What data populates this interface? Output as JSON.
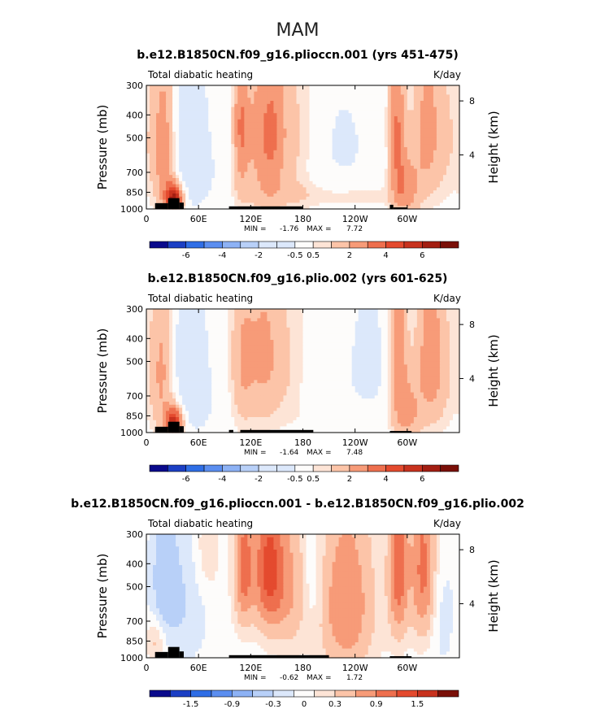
{
  "figure": {
    "season": "MAM"
  },
  "colors": {
    "blues": [
      "#0a0a8c",
      "#1b3fc4",
      "#2f6ee6",
      "#5b8ef0",
      "#8db2f5",
      "#b8d0f8",
      "#dce8fb"
    ],
    "neutral": "#fdfcfb",
    "reds": [
      "#fde4d6",
      "#fcc4a8",
      "#f79b78",
      "#ee6f4e",
      "#e44a2e",
      "#c8321e",
      "#a31e12",
      "#7a0f08"
    ],
    "topography": "#000000"
  },
  "chart_data": [
    {
      "type": "heatmap",
      "title": "b.e12.B1850CN.f09_g16.plioccn.001 (yrs 451-475)",
      "left_label": "Total diabatic heating",
      "units": "K/day",
      "ylabel": "Pressure (mb)",
      "ylabel_right": "Height (km)",
      "x_ticks": [
        "0",
        "60E",
        "120E",
        "180",
        "120W",
        "60W"
      ],
      "x_tick_lon": [
        0,
        60,
        120,
        180,
        240,
        300
      ],
      "xlim": [
        0,
        360
      ],
      "y_ticks": [
        "300",
        "400",
        "500",
        "700",
        "850",
        "1000"
      ],
      "y_tick_p": [
        300,
        400,
        500,
        700,
        850,
        1000
      ],
      "ylim": [
        300,
        1000
      ],
      "right_ticks": [
        "8",
        "4"
      ],
      "right_tick_km": [
        8,
        4
      ],
      "min_label": "MIN =",
      "min_value": "-1.76",
      "max_label": "MAX =",
      "max_value": "7.72",
      "colorbar_labels": [
        "-6",
        "-4",
        "-2",
        "-0.5",
        "0.5",
        "2",
        "4",
        "6"
      ],
      "colorbar_label_levels": [
        -6,
        -4,
        -2,
        -0.5,
        0.5,
        2,
        4,
        6
      ],
      "levels": [
        -7,
        -6,
        -5,
        -4,
        -3,
        -2,
        -1,
        -0.5,
        0.5,
        1,
        2,
        3,
        4,
        5,
        6,
        7
      ],
      "features": [
        {
          "lon": 20,
          "p": 550,
          "amp": 2.8,
          "sl": 10,
          "sp": 320
        },
        {
          "lon": 32,
          "p": 900,
          "amp": 6.0,
          "sl": 7,
          "sp": 90
        },
        {
          "lon": 48,
          "p": 450,
          "amp": -1.5,
          "sl": 14,
          "sp": 250
        },
        {
          "lon": 60,
          "p": 750,
          "amp": -0.7,
          "sl": 18,
          "sp": 200
        },
        {
          "lon": 108,
          "p": 450,
          "amp": 2.5,
          "sl": 6,
          "sp": 260
        },
        {
          "lon": 125,
          "p": 500,
          "amp": 1.8,
          "sl": 12,
          "sp": 300
        },
        {
          "lon": 145,
          "p": 480,
          "amp": 2.4,
          "sl": 11,
          "sp": 300
        },
        {
          "lon": 170,
          "p": 480,
          "amp": 1.2,
          "sl": 18,
          "sp": 280
        },
        {
          "lon": 175,
          "p": 880,
          "amp": 0.8,
          "sl": 50,
          "sp": 90
        },
        {
          "lon": 225,
          "p": 540,
          "amp": -0.6,
          "sl": 30,
          "sp": 280
        },
        {
          "lon": 255,
          "p": 880,
          "amp": 0.6,
          "sl": 30,
          "sp": 90
        },
        {
          "lon": 288,
          "p": 450,
          "amp": 3.0,
          "sl": 7,
          "sp": 320
        },
        {
          "lon": 300,
          "p": 820,
          "amp": 2.2,
          "sl": 10,
          "sp": 200
        },
        {
          "lon": 322,
          "p": 450,
          "amp": 2.2,
          "sl": 11,
          "sp": 300
        },
        {
          "lon": 345,
          "p": 500,
          "amp": 1.0,
          "sl": 14,
          "sp": 300
        }
      ],
      "topo": [
        [
          10,
          25,
          945
        ],
        [
          25,
          38,
          900
        ],
        [
          38,
          43,
          940
        ],
        [
          95,
          180,
          975
        ],
        [
          280,
          284,
          960
        ],
        [
          284,
          300,
          985
        ]
      ],
      "colorbar_ramp": "full"
    },
    {
      "type": "heatmap",
      "title": "b.e12.B1850CN.f09_g16.plio.002 (yrs 601-625)",
      "left_label": "Total diabatic heating",
      "units": "K/day",
      "ylabel": "Pressure (mb)",
      "ylabel_right": "Height (km)",
      "x_ticks": [
        "0",
        "60E",
        "120E",
        "180",
        "120W",
        "60W"
      ],
      "x_tick_lon": [
        0,
        60,
        120,
        180,
        240,
        300
      ],
      "xlim": [
        0,
        360
      ],
      "y_ticks": [
        "300",
        "400",
        "500",
        "700",
        "850",
        "1000"
      ],
      "y_tick_p": [
        300,
        400,
        500,
        700,
        850,
        1000
      ],
      "ylim": [
        300,
        1000
      ],
      "right_ticks": [
        "8",
        "4"
      ],
      "right_tick_km": [
        8,
        4
      ],
      "min_label": "MIN =",
      "min_value": "-1.64",
      "max_label": "MAX =",
      "max_value": "7.48",
      "colorbar_labels": [
        "-6",
        "-4",
        "-2",
        "-0.5",
        "0.5",
        "2",
        "4",
        "6"
      ],
      "colorbar_label_levels": [
        -6,
        -4,
        -2,
        -0.5,
        0.5,
        2,
        4,
        6
      ],
      "levels": [
        -7,
        -6,
        -5,
        -4,
        -3,
        -2,
        -1,
        -0.5,
        0.5,
        1,
        2,
        3,
        4,
        5,
        6,
        7
      ],
      "features": [
        {
          "lon": 18,
          "p": 550,
          "amp": 2.3,
          "sl": 10,
          "sp": 320
        },
        {
          "lon": 32,
          "p": 900,
          "amp": 5.5,
          "sl": 7,
          "sp": 90
        },
        {
          "lon": 48,
          "p": 450,
          "amp": -1.4,
          "sl": 14,
          "sp": 250
        },
        {
          "lon": 60,
          "p": 760,
          "amp": -0.6,
          "sl": 18,
          "sp": 200
        },
        {
          "lon": 110,
          "p": 500,
          "amp": 1.8,
          "sl": 10,
          "sp": 300
        },
        {
          "lon": 135,
          "p": 460,
          "amp": 2.0,
          "sl": 14,
          "sp": 300
        },
        {
          "lon": 165,
          "p": 520,
          "amp": 0.9,
          "sl": 18,
          "sp": 280
        },
        {
          "lon": 205,
          "p": 720,
          "amp": -0.5,
          "sl": 20,
          "sp": 200
        },
        {
          "lon": 255,
          "p": 500,
          "amp": -1.0,
          "sl": 14,
          "sp": 220
        },
        {
          "lon": 230,
          "p": 880,
          "amp": 0.6,
          "sl": 40,
          "sp": 90
        },
        {
          "lon": 290,
          "p": 450,
          "amp": 2.6,
          "sl": 7,
          "sp": 320
        },
        {
          "lon": 302,
          "p": 820,
          "amp": 2.0,
          "sl": 10,
          "sp": 200
        },
        {
          "lon": 325,
          "p": 450,
          "amp": 2.2,
          "sl": 11,
          "sp": 300
        },
        {
          "lon": 340,
          "p": 550,
          "amp": 1.0,
          "sl": 14,
          "sp": 300
        }
      ],
      "topo": [
        [
          10,
          25,
          945
        ],
        [
          25,
          38,
          900
        ],
        [
          38,
          43,
          940
        ],
        [
          95,
          100,
          975
        ],
        [
          108,
          192,
          975
        ],
        [
          280,
          305,
          985
        ]
      ],
      "colorbar_ramp": "full"
    },
    {
      "type": "heatmap",
      "title": "b.e12.B1850CN.f09_g16.plioccn.001 - b.e12.B1850CN.f09_g16.plio.002",
      "left_label": "Total diabatic heating",
      "units": "K/day",
      "ylabel": "Pressure (mb)",
      "ylabel_right": "Height (km)",
      "x_ticks": [
        "0",
        "60E",
        "120E",
        "180",
        "120W",
        "60W"
      ],
      "x_tick_lon": [
        0,
        60,
        120,
        180,
        240,
        300
      ],
      "xlim": [
        0,
        360
      ],
      "y_ticks": [
        "300",
        "400",
        "500",
        "700",
        "850",
        "1000"
      ],
      "y_tick_p": [
        300,
        400,
        500,
        700,
        850,
        1000
      ],
      "ylim": [
        300,
        1000
      ],
      "right_ticks": [
        "8",
        "4"
      ],
      "right_tick_km": [
        8,
        4
      ],
      "min_label": "MIN =",
      "min_value": "-0.62",
      "max_label": "MAX =",
      "max_value": "1.72",
      "colorbar_labels": [
        "-1.5",
        "-0.9",
        "-0.3",
        "0",
        "0.3",
        "0.9",
        "1.5"
      ],
      "colorbar_label_levels": [
        -1.5,
        -0.9,
        -0.3,
        0,
        0.3,
        0.9,
        1.5
      ],
      "levels": [
        -1.8,
        -1.5,
        -1.2,
        -0.9,
        -0.6,
        -0.3,
        -0.1,
        0.1,
        0.3,
        0.6,
        0.9,
        1.2,
        1.5,
        1.8
      ],
      "features": [
        {
          "lon": 10,
          "p": 850,
          "amp": 0.4,
          "sl": 8,
          "sp": 120
        },
        {
          "lon": 20,
          "p": 450,
          "amp": -0.4,
          "sl": 10,
          "sp": 200
        },
        {
          "lon": 40,
          "p": 600,
          "amp": -0.3,
          "sl": 20,
          "sp": 300
        },
        {
          "lon": 70,
          "p": 350,
          "amp": 0.3,
          "sl": 10,
          "sp": 120
        },
        {
          "lon": 112,
          "p": 420,
          "amp": 1.0,
          "sl": 8,
          "sp": 200
        },
        {
          "lon": 140,
          "p": 420,
          "amp": 1.2,
          "sl": 12,
          "sp": 220
        },
        {
          "lon": 165,
          "p": 500,
          "amp": 0.6,
          "sl": 16,
          "sp": 260
        },
        {
          "lon": 190,
          "p": 480,
          "amp": -0.3,
          "sl": 10,
          "sp": 200
        },
        {
          "lon": 230,
          "p": 600,
          "amp": 0.9,
          "sl": 22,
          "sp": 350
        },
        {
          "lon": 290,
          "p": 420,
          "amp": 1.1,
          "sl": 8,
          "sp": 260
        },
        {
          "lon": 318,
          "p": 420,
          "amp": 1.0,
          "sl": 10,
          "sp": 260
        },
        {
          "lon": 340,
          "p": 700,
          "amp": -0.2,
          "sl": 10,
          "sp": 250
        }
      ],
      "topo": [
        [
          10,
          25,
          945
        ],
        [
          25,
          38,
          900
        ],
        [
          38,
          43,
          940
        ],
        [
          95,
          210,
          975
        ],
        [
          280,
          305,
          985
        ]
      ],
      "colorbar_ramp": "diff"
    }
  ]
}
